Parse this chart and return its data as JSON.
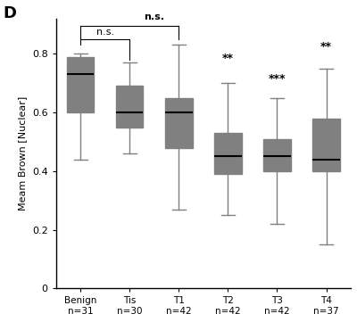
{
  "categories": [
    "Benign",
    "Tis",
    "T1",
    "T2",
    "T3",
    "T4"
  ],
  "n_labels": [
    "n=31",
    "n=30",
    "n=42",
    "n=42",
    "n=42",
    "n=37"
  ],
  "significance": [
    "n.s.",
    "n.s.",
    "n.s.",
    "**",
    "***",
    "**"
  ],
  "sig_positions": [
    null,
    0,
    2,
    3,
    4,
    5
  ],
  "boxes": [
    {
      "whislo": 0.44,
      "q1": 0.6,
      "med": 0.73,
      "q3": 0.79,
      "whishi": 0.8
    },
    {
      "whislo": 0.46,
      "q1": 0.55,
      "med": 0.6,
      "q3": 0.69,
      "whishi": 0.77
    },
    {
      "whislo": 0.27,
      "q1": 0.48,
      "med": 0.6,
      "q3": 0.65,
      "whishi": 0.83
    },
    {
      "whislo": 0.25,
      "q1": 0.39,
      "med": 0.45,
      "q3": 0.53,
      "whishi": 0.7
    },
    {
      "whislo": 0.22,
      "q1": 0.4,
      "med": 0.45,
      "q3": 0.51,
      "whishi": 0.65
    },
    {
      "whislo": 0.15,
      "q1": 0.4,
      "med": 0.44,
      "q3": 0.58,
      "whishi": 0.75
    }
  ],
  "box_color": "#808080",
  "median_color": "#000000",
  "whisker_color": "#808080",
  "ylabel": "Meam Brown [Nuclear]",
  "ylim": [
    0,
    0.92
  ],
  "yticks": [
    0,
    0.2,
    0.4,
    0.6,
    0.8
  ],
  "panel_label": "D",
  "background_color": "#ffffff",
  "sig_labels_above": {
    "1": "n.s.",
    "2": "n.s.",
    "3": "**",
    "4": "***",
    "5": "**"
  }
}
